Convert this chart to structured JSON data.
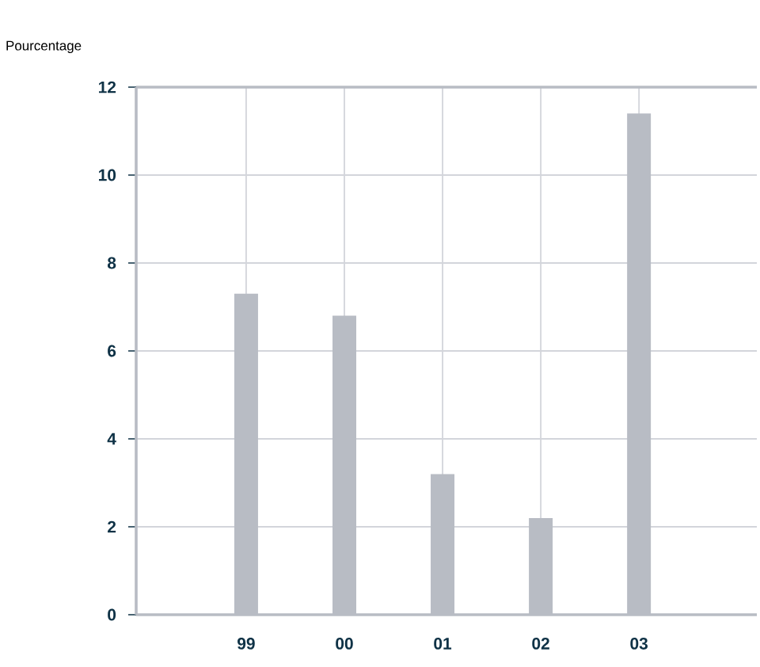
{
  "chart_data": {
    "type": "bar",
    "ylabel": "Pourcentage",
    "categories": [
      "99",
      "00",
      "01",
      "02",
      "03"
    ],
    "values": [
      7.3,
      6.8,
      3.2,
      2.2,
      11.4
    ],
    "color": "#b8bcc4",
    "ylim": [
      0,
      12
    ],
    "yticks": [
      0,
      2,
      4,
      6,
      8,
      10,
      12
    ],
    "grid": true
  }
}
